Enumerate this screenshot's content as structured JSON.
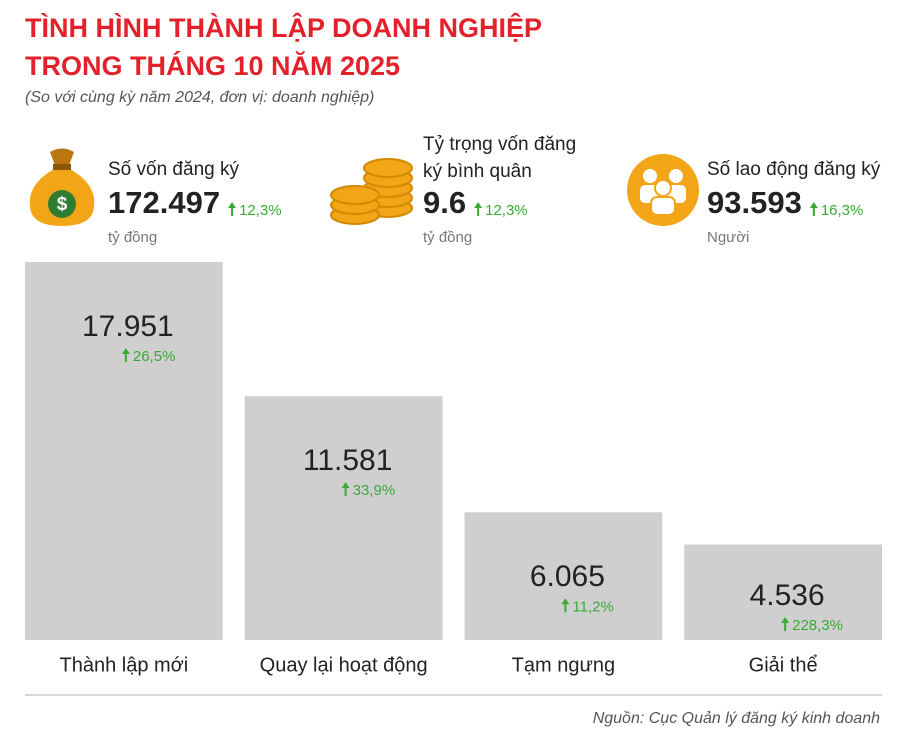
{
  "header": {
    "title_lines": [
      "TÌNH HÌNH THÀNH LẬP DOANH NGHIỆP",
      "TRONG THÁNG 10 NĂM 2025"
    ],
    "subtitle": "(So với cùng kỳ năm 2024, đơn vị: doanh nghiệp)"
  },
  "kpis": [
    {
      "label_lines": [
        "Số vốn đăng ký"
      ],
      "value": "172.497",
      "change": "12,3%",
      "unit": "tỷ đồng"
    },
    {
      "label_lines": [
        "Tỷ trọng vốn đăng",
        "ký bình quân"
      ],
      "value": "9.6",
      "change": "12,3%",
      "unit": "tỷ đồng"
    },
    {
      "label_lines": [
        "Số lao động đăng ký"
      ],
      "value": "93.593",
      "change": "16,3%",
      "unit": "Người"
    }
  ],
  "chart_data": {
    "type": "bar",
    "categories": [
      "Thành lập mới",
      "Quay lại hoạt động",
      "Tạm ngưng",
      "Giải thể"
    ],
    "values": [
      17951,
      11581,
      6065,
      4536
    ],
    "value_labels": [
      "17.951",
      "11.581",
      "6.065",
      "4.536"
    ],
    "changes": [
      "26,5%",
      "33,9%",
      "11,2%",
      "228,3%"
    ],
    "color": "#cfcfcf"
  },
  "source": "Nguồn: Cục Quản lý đăng ký kinh doanh"
}
